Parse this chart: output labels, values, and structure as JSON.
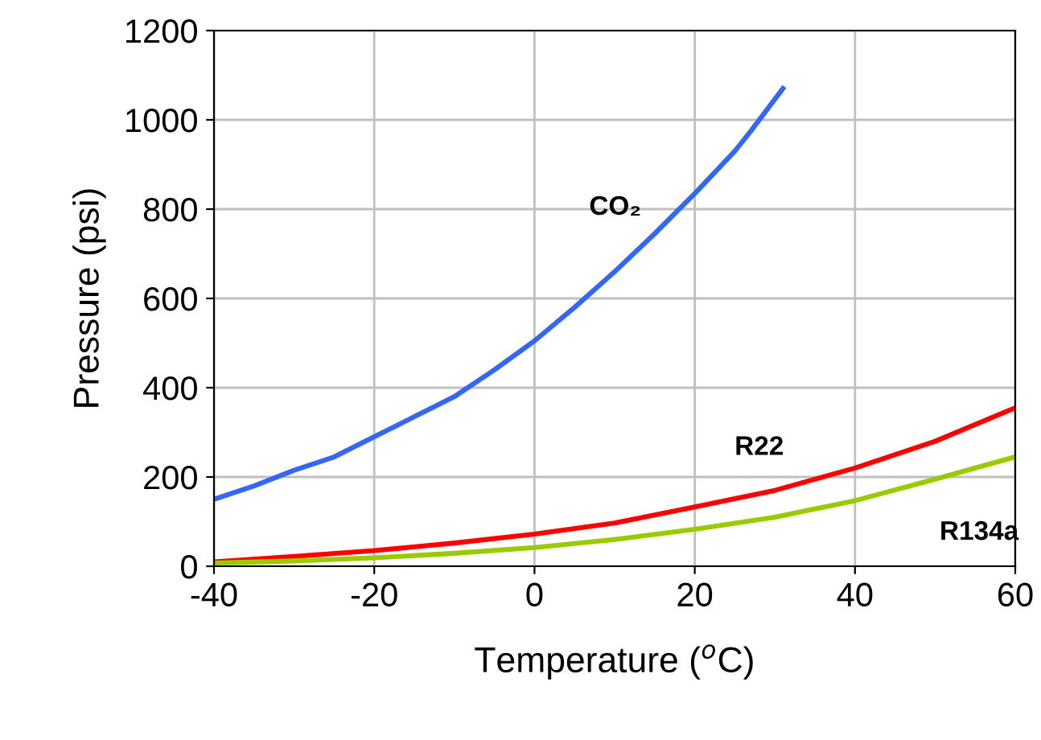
{
  "chart_data": {
    "type": "line",
    "xlabel": "Temperature ($^{o}$C)",
    "ylabel": "Pressure (psi)",
    "xlim": [
      -40,
      60
    ],
    "xticks": [
      -40,
      -20,
      0,
      20,
      40,
      60
    ],
    "ylim": [
      0,
      1200
    ],
    "yticks": [
      0,
      200,
      400,
      600,
      800,
      1000,
      1200
    ],
    "grid": true,
    "legend": false,
    "marker": "none",
    "line_style": "solid",
    "series": [
      {
        "name": "CO₂",
        "color": "#3366ff",
        "x": [
          -40,
          -35,
          -30,
          -25,
          -20,
          -15,
          -10,
          -5,
          0,
          5,
          10,
          15,
          20,
          25,
          27,
          31
        ],
        "values": [
          150,
          180,
          215,
          245,
          290,
          335,
          380,
          440,
          505,
          580,
          660,
          745,
          835,
          930,
          975,
          1070
        ]
      },
      {
        "name": "R22",
        "color": "#ff0000",
        "x": [
          -40,
          -30,
          -20,
          -10,
          0,
          10,
          20,
          30,
          40,
          50,
          60
        ],
        "values": [
          10,
          22,
          35,
          52,
          72,
          97,
          133,
          170,
          220,
          280,
          355
        ]
      },
      {
        "name": "R134a",
        "color": "#99cc00",
        "x": [
          -40,
          -30,
          -20,
          -10,
          0,
          10,
          20,
          30,
          40,
          50,
          60
        ],
        "values": [
          7,
          12,
          19,
          29,
          42,
          60,
          83,
          110,
          147,
          195,
          245
        ]
      }
    ]
  }
}
